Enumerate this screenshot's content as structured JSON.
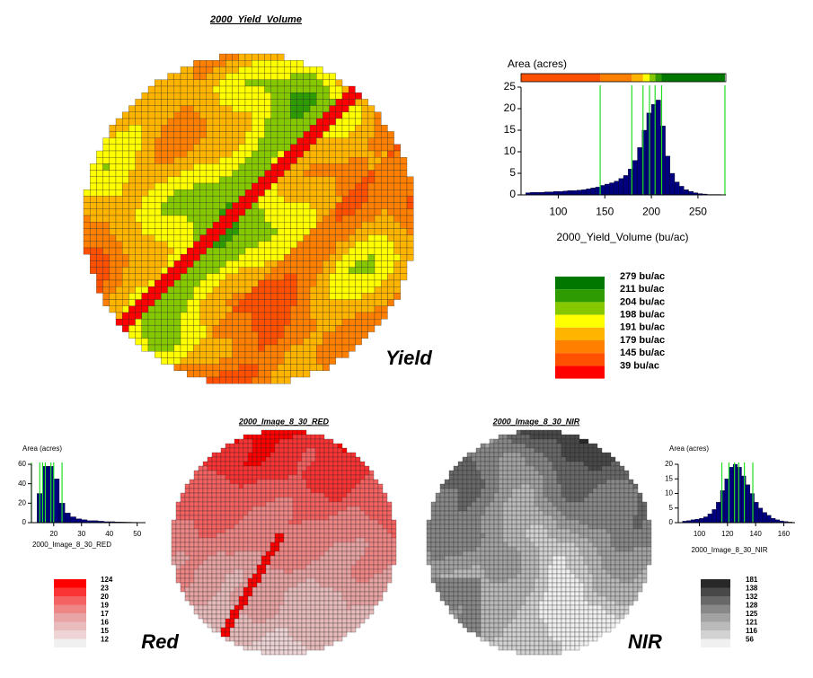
{
  "chart_data": [
    {
      "type": "histogram",
      "title": "2000_Yield_Volume",
      "map_label": "Yield",
      "ylabel": "Area (acres)",
      "xlabel": "2000_Yield_Volume (bu/ac)",
      "bins": [
        65,
        70,
        75,
        80,
        85,
        90,
        95,
        100,
        105,
        110,
        115,
        120,
        125,
        130,
        135,
        140,
        145,
        150,
        155,
        160,
        165,
        170,
        175,
        180,
        185,
        190,
        195,
        200,
        205,
        210,
        215,
        220,
        225,
        230,
        235,
        240,
        245,
        250,
        255,
        260,
        265,
        270,
        275
      ],
      "values": [
        0.5,
        0.6,
        0.6,
        0.6,
        0.7,
        0.7,
        0.8,
        0.8,
        0.9,
        1,
        1,
        1.1,
        1.2,
        1.4,
        1.6,
        1.8,
        2.2,
        2.5,
        2.8,
        3.2,
        3.8,
        4.5,
        6,
        8,
        11,
        15,
        19,
        21,
        22,
        16,
        9,
        5,
        3,
        2,
        1.2,
        0.8,
        0.5,
        0.3,
        0.2,
        0.1,
        0.1,
        0.1
      ],
      "color": "#00007f",
      "xlim": [
        60,
        280
      ],
      "xticks": [
        100,
        150,
        200,
        250
      ],
      "ylim": [
        0,
        25
      ],
      "yticks": [
        0,
        5,
        10,
        15,
        20,
        25
      ],
      "class_bar": true,
      "classes": [
        {
          "label": "279 bu/ac",
          "value": 279,
          "color": "#007800"
        },
        {
          "label": "211 bu/ac",
          "value": 211,
          "color": "#2e9c00"
        },
        {
          "label": "204 bu/ac",
          "value": 204,
          "color": "#86c800"
        },
        {
          "label": "198 bu/ac",
          "value": 198,
          "color": "#ffff00"
        },
        {
          "label": "191 bu/ac",
          "value": 191,
          "color": "#ffb400"
        },
        {
          "label": "179 bu/ac",
          "value": 179,
          "color": "#ff8000"
        },
        {
          "label": "145 bu/ac",
          "value": 145,
          "color": "#ff5000"
        },
        {
          "label": "39 bu/ac",
          "value": 39,
          "color": "#ff0000"
        }
      ]
    },
    {
      "type": "histogram",
      "title": "2000_Image_8_30_RED",
      "map_label": "Red",
      "ylabel": "Area (acres)",
      "xlabel": "2000_Image_8_30_RED",
      "bins": [
        14,
        16,
        18,
        20,
        22,
        24,
        26,
        28,
        30,
        32,
        34,
        36,
        38,
        40,
        42,
        44,
        46,
        48,
        50,
        52
      ],
      "values": [
        30,
        58,
        58,
        45,
        20,
        10,
        6,
        4,
        3,
        2,
        2,
        1.5,
        1,
        1,
        0.8,
        0.6,
        0.5,
        0.4,
        0.3
      ],
      "color": "#00007f",
      "xlim": [
        12,
        53
      ],
      "xticks": [
        20,
        30,
        40,
        50
      ],
      "ylim": [
        0,
        60
      ],
      "yticks": [
        0,
        20,
        40,
        60
      ],
      "class_bar": false,
      "classes": [
        {
          "label": "124",
          "value": 124,
          "color": "#ff0000"
        },
        {
          "label": "23",
          "value": 23,
          "color": "#fa3434"
        },
        {
          "label": "20",
          "value": 20,
          "color": "#f46262"
        },
        {
          "label": "19",
          "value": 19,
          "color": "#ee8686"
        },
        {
          "label": "17",
          "value": 17,
          "color": "#e8a4a4"
        },
        {
          "label": "16",
          "value": 16,
          "color": "#e8bcbc"
        },
        {
          "label": "15",
          "value": 15,
          "color": "#eed4d4"
        },
        {
          "label": "12",
          "value": 12,
          "color": "#f0f0f0"
        }
      ]
    },
    {
      "type": "histogram",
      "title": "2000_Image_8_30_NIR",
      "map_label": "NIR",
      "ylabel": "Area (acres)",
      "xlabel": "2000_Image_8_30_NIR",
      "bins": [
        88,
        91,
        94,
        97,
        100,
        103,
        106,
        109,
        112,
        115,
        118,
        121,
        124,
        127,
        130,
        133,
        136,
        139,
        142,
        145,
        148,
        151,
        154,
        157,
        160,
        163,
        166
      ],
      "values": [
        0.5,
        0.7,
        1,
        1.2,
        1.5,
        2,
        3,
        4.5,
        7,
        11,
        15,
        19,
        20,
        19,
        16,
        13,
        10,
        7,
        5,
        3.5,
        2.5,
        1.5,
        1,
        0.6,
        0.4,
        0.2
      ],
      "color": "#00007f",
      "xlim": [
        85,
        168
      ],
      "xticks": [
        100,
        120,
        140,
        160
      ],
      "ylim": [
        0,
        20
      ],
      "yticks": [
        0,
        5,
        10,
        15,
        20
      ],
      "class_bar": false,
      "classes": [
        {
          "label": "181",
          "value": 181,
          "color": "#282828"
        },
        {
          "label": "138",
          "value": 138,
          "color": "#484848"
        },
        {
          "label": "132",
          "value": 132,
          "color": "#686868"
        },
        {
          "label": "128",
          "value": 128,
          "color": "#888888"
        },
        {
          "label": "125",
          "value": 125,
          "color": "#a2a2a2"
        },
        {
          "label": "121",
          "value": 121,
          "color": "#bababa"
        },
        {
          "label": "116",
          "value": 116,
          "color": "#d2d2d2"
        },
        {
          "label": "56",
          "value": 56,
          "color": "#f0f0f0"
        }
      ]
    }
  ]
}
